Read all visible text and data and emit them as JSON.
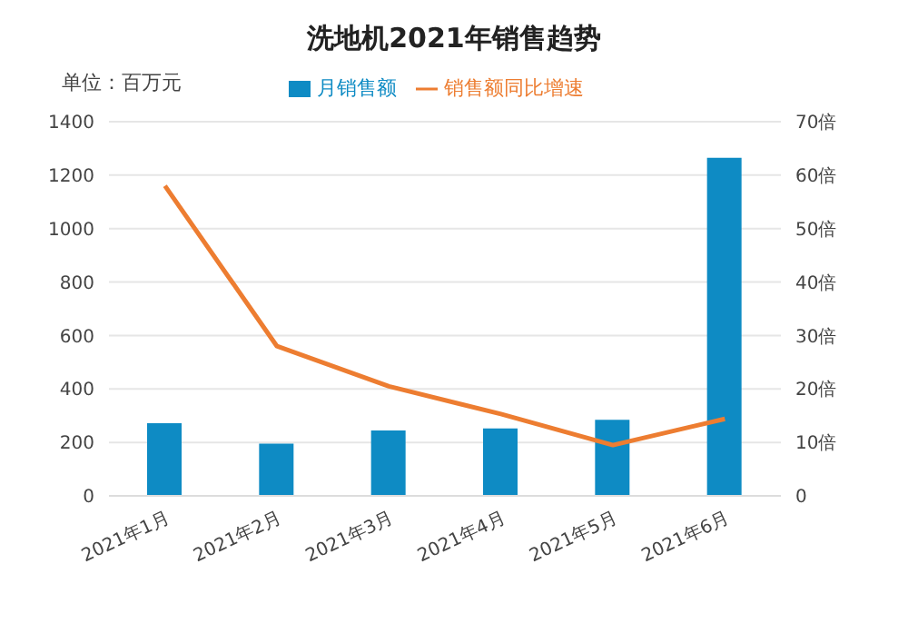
{
  "chart_data": {
    "type": "bar",
    "title": "洗地机2021年销售趋势",
    "ylabel": "单位：百万元",
    "categories": [
      "2021年1月",
      "2021年2月",
      "2021年3月",
      "2021年4月",
      "2021年5月",
      "2021年6月"
    ],
    "series": [
      {
        "name": "月销售额",
        "color": "#0e8bc4",
        "values": [
          272,
          195,
          245,
          252,
          285,
          1265
        ]
      },
      {
        "name": "销售额同比增速",
        "type": "line",
        "axis": "y2",
        "color": "#ed7d31",
        "values": [
          58,
          28,
          20.5,
          15.3,
          9.5,
          14.4
        ]
      }
    ],
    "ylim": [
      0,
      1400
    ],
    "yticks": [
      0,
      200,
      400,
      600,
      800,
      1000,
      1200,
      1400
    ],
    "y2lim": [
      0,
      70
    ],
    "y2ticks": [
      0,
      {
        "value": 10,
        "label": "10倍"
      },
      {
        "value": 20,
        "label": "20倍"
      },
      {
        "value": 30,
        "label": "30倍"
      },
      {
        "value": 40,
        "label": "40倍"
      },
      {
        "value": 50,
        "label": "50倍"
      },
      {
        "value": 60,
        "label": "60倍"
      },
      {
        "value": 70,
        "label": "70倍"
      }
    ],
    "grid": "y",
    "legend": "top",
    "marker": "none",
    "line_style": "solid"
  }
}
